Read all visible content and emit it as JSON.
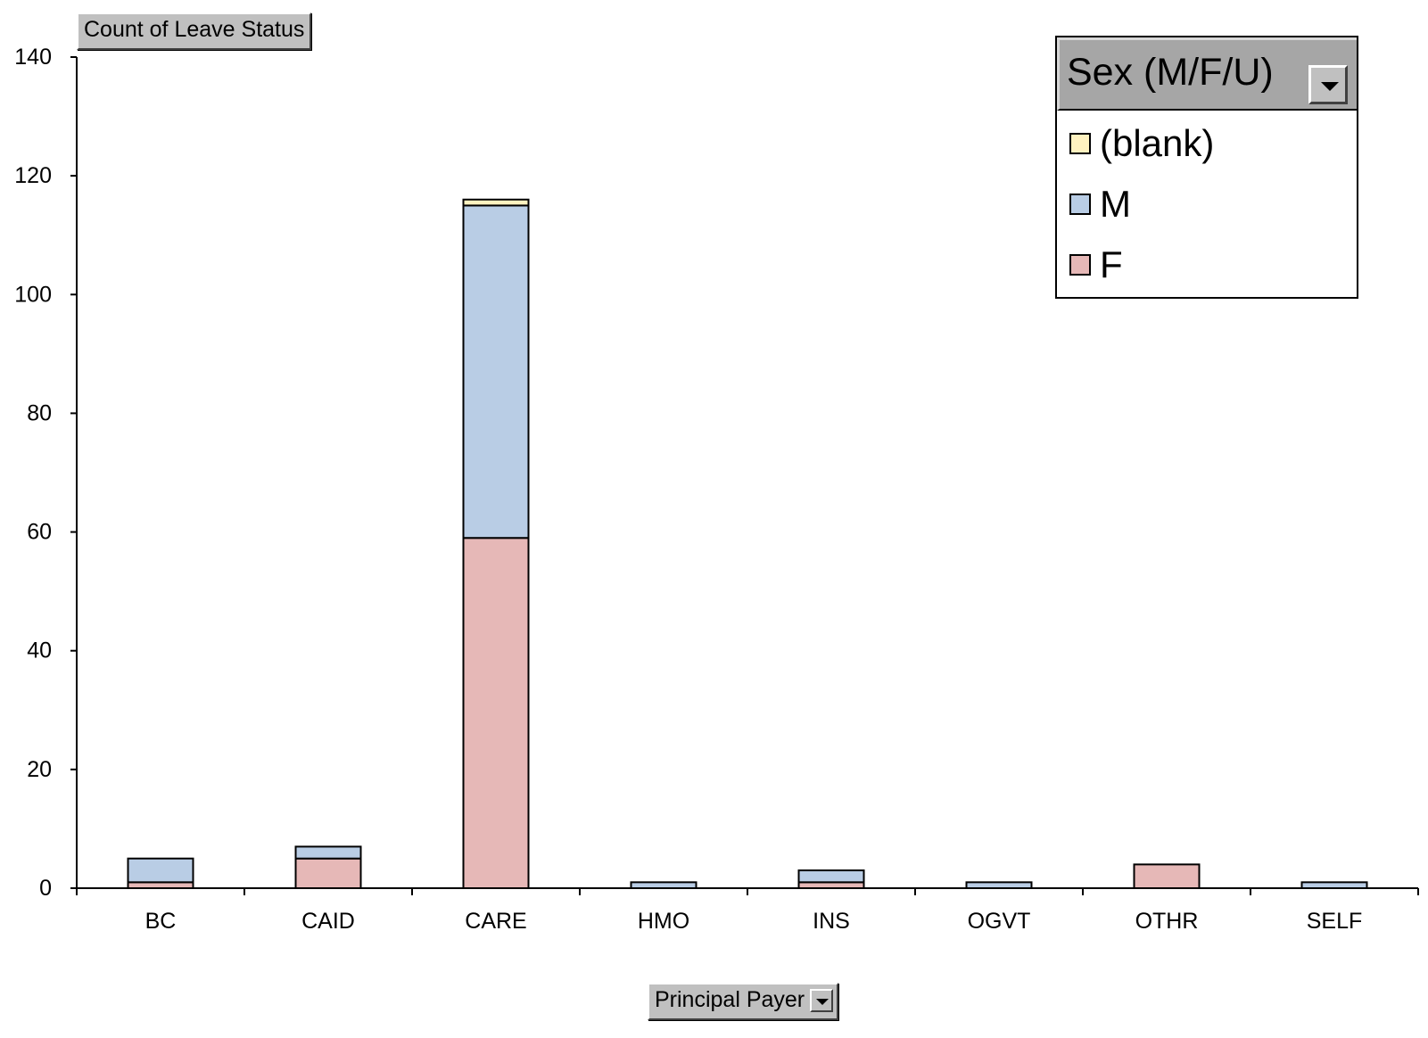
{
  "chart_data": {
    "type": "bar",
    "stacked": true,
    "title": "Count of Leave Status",
    "xlabel": "Principal Payer",
    "ylabel": "",
    "categories": [
      "BC",
      "CAID",
      "CARE",
      "HMO",
      "INS",
      "OGVT",
      "OTHR",
      "SELF"
    ],
    "ylim": [
      0,
      140
    ],
    "yticks": [
      0,
      20,
      40,
      60,
      80,
      100,
      120,
      140
    ],
    "series": [
      {
        "name": "F",
        "color": "#e6b8b7",
        "values": [
          1,
          5,
          59,
          0,
          1,
          0,
          4,
          0
        ]
      },
      {
        "name": "M",
        "color": "#b9cde5",
        "values": [
          4,
          2,
          56,
          1,
          2,
          1,
          0,
          1
        ]
      },
      {
        "name": "(blank)",
        "color": "#fff2c0",
        "values": [
          0,
          0,
          1,
          0,
          0,
          0,
          0,
          0
        ]
      }
    ],
    "legend": {
      "title": "Sex (M/F/U)",
      "order": [
        "(blank)",
        "M",
        "F"
      ],
      "position": "top-right"
    },
    "grid": false
  }
}
